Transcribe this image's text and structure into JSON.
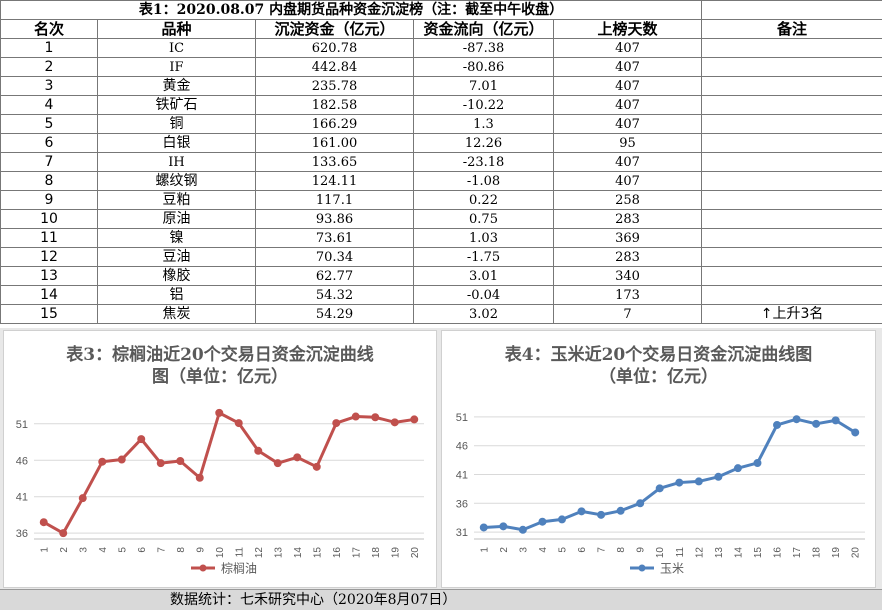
{
  "table": {
    "title": "表1：2020.08.07 内盘期货品种资金沉淀榜（注：截至中午收盘）",
    "headers": [
      "名次",
      "品种",
      "沉淀资金（亿元）",
      "资金流向（亿元）",
      "上榜天数",
      "备注"
    ],
    "rows": [
      [
        "1",
        "IC",
        "620.78",
        "-87.38",
        "407",
        ""
      ],
      [
        "2",
        "IF",
        "442.84",
        "-80.86",
        "407",
        ""
      ],
      [
        "3",
        "黄金",
        "235.78",
        "7.01",
        "407",
        ""
      ],
      [
        "4",
        "铁矿石",
        "182.58",
        "-10.22",
        "407",
        ""
      ],
      [
        "5",
        "铜",
        "166.29",
        "1.3",
        "407",
        ""
      ],
      [
        "6",
        "白银",
        "161.00",
        "12.26",
        "95",
        ""
      ],
      [
        "7",
        "IH",
        "133.65",
        "-23.18",
        "407",
        ""
      ],
      [
        "8",
        "螺纹钢",
        "124.11",
        "-1.08",
        "407",
        ""
      ],
      [
        "9",
        "豆粕",
        "117.1",
        "0.22",
        "258",
        ""
      ],
      [
        "10",
        "原油",
        "93.86",
        "0.75",
        "283",
        ""
      ],
      [
        "11",
        "镍",
        "73.61",
        "1.03",
        "369",
        ""
      ],
      [
        "12",
        "豆油",
        "70.34",
        "-1.75",
        "283",
        ""
      ],
      [
        "13",
        "橡胶",
        "62.77",
        "3.01",
        "340",
        ""
      ],
      [
        "14",
        "铝",
        "54.32",
        "-0.04",
        "173",
        ""
      ],
      [
        "15",
        "焦炭",
        "54.29",
        "3.02",
        "7",
        "↑上升3名"
      ]
    ]
  },
  "chart_data": [
    {
      "type": "line",
      "title_line1": "表3：棕榈油近20个交易日资金沉淀曲线",
      "title_line2": "图（单位：亿元）",
      "x": [
        1,
        2,
        3,
        4,
        5,
        6,
        7,
        8,
        9,
        10,
        11,
        12,
        13,
        14,
        15,
        16,
        17,
        18,
        19,
        20
      ],
      "series": [
        {
          "name": "棕榈油",
          "values": [
            37.5,
            36.0,
            40.8,
            45.8,
            46.1,
            48.9,
            45.6,
            45.9,
            43.6,
            52.5,
            51.1,
            47.3,
            45.6,
            46.4,
            45.1,
            51.1,
            52.0,
            51.9,
            51.2,
            51.6
          ]
        }
      ],
      "yticks": [
        36,
        41,
        46,
        51
      ],
      "ylim": [
        35.2,
        55.5
      ],
      "color": "#c0504d"
    },
    {
      "type": "line",
      "title_line1": "表4：玉米近20个交易日资金沉淀曲线图",
      "title_line2": "（单位：亿元）",
      "x": [
        1,
        2,
        3,
        4,
        5,
        6,
        7,
        8,
        9,
        10,
        11,
        12,
        13,
        14,
        15,
        16,
        17,
        18,
        19,
        20
      ],
      "series": [
        {
          "name": "玉米",
          "values": [
            31.8,
            32.0,
            31.4,
            32.8,
            33.2,
            34.6,
            34.0,
            34.7,
            36.0,
            38.6,
            39.6,
            39.8,
            40.6,
            42.1,
            43.0,
            49.6,
            50.6,
            49.8,
            50.4,
            48.3
          ]
        }
      ],
      "yticks": [
        31,
        36,
        41,
        46,
        51
      ],
      "ylim": [
        29.8,
        55.5
      ],
      "color": "#4f81bd"
    }
  ],
  "footer": "数据统计：七禾研究中心（2020年8月07日）"
}
